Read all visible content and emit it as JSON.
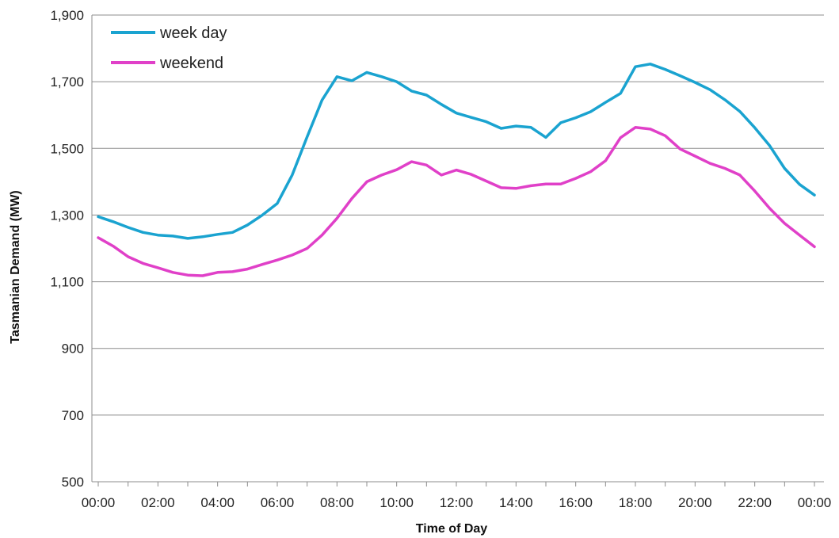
{
  "chart_data": {
    "type": "line",
    "title": "",
    "xlabel": "Time of Day",
    "ylabel": "Tasmanian Demand (MW)",
    "ylim": [
      500,
      1900
    ],
    "yticks": [
      500,
      700,
      900,
      1100,
      1300,
      1500,
      1700,
      1900
    ],
    "ytick_labels": [
      "500",
      "700",
      "900",
      "1,100",
      "1,300",
      "1,500",
      "1,700",
      "1,900"
    ],
    "xtick_labels": [
      "00:00",
      "02:00",
      "04:00",
      "06:00",
      "08:00",
      "10:00",
      "12:00",
      "14:00",
      "16:00",
      "18:00",
      "20:00",
      "22:00",
      "00:00"
    ],
    "grid": "horizontal",
    "legend_position": "top-left",
    "x": [
      "00:00",
      "00:30",
      "01:00",
      "01:30",
      "02:00",
      "02:30",
      "03:00",
      "03:30",
      "04:00",
      "04:30",
      "05:00",
      "05:30",
      "06:00",
      "06:30",
      "07:00",
      "07:30",
      "08:00",
      "08:30",
      "09:00",
      "09:30",
      "10:00",
      "10:30",
      "11:00",
      "11:30",
      "12:00",
      "12:30",
      "13:00",
      "13:30",
      "14:00",
      "14:30",
      "15:00",
      "15:30",
      "16:00",
      "16:30",
      "17:00",
      "17:30",
      "18:00",
      "18:30",
      "19:00",
      "19:30",
      "20:00",
      "20:30",
      "21:00",
      "21:30",
      "22:00",
      "22:30",
      "23:00",
      "23:30",
      "00:00"
    ],
    "series": [
      {
        "name": "week day",
        "color": "#1aa3d0",
        "values": [
          1295,
          1280,
          1263,
          1248,
          1240,
          1237,
          1230,
          1235,
          1242,
          1248,
          1270,
          1300,
          1335,
          1420,
          1535,
          1645,
          1715,
          1703,
          1728,
          1715,
          1700,
          1672,
          1660,
          1632,
          1606,
          1593,
          1580,
          1560,
          1567,
          1563,
          1533,
          1577,
          1592,
          1610,
          1638,
          1665,
          1745,
          1753,
          1737,
          1718,
          1698,
          1676,
          1646,
          1611,
          1562,
          1508,
          1440,
          1392,
          1360
        ]
      },
      {
        "name": "weekend",
        "color": "#e040c8",
        "values": [
          1232,
          1207,
          1175,
          1155,
          1142,
          1128,
          1120,
          1118,
          1128,
          1130,
          1138,
          1152,
          1165,
          1180,
          1200,
          1240,
          1290,
          1350,
          1400,
          1420,
          1436,
          1460,
          1450,
          1420,
          1435,
          1422,
          1402,
          1382,
          1380,
          1388,
          1393,
          1393,
          1410,
          1430,
          1463,
          1532,
          1563,
          1558,
          1538,
          1498,
          1477,
          1455,
          1440,
          1420,
          1372,
          1320,
          1275,
          1240,
          1205
        ]
      }
    ]
  }
}
